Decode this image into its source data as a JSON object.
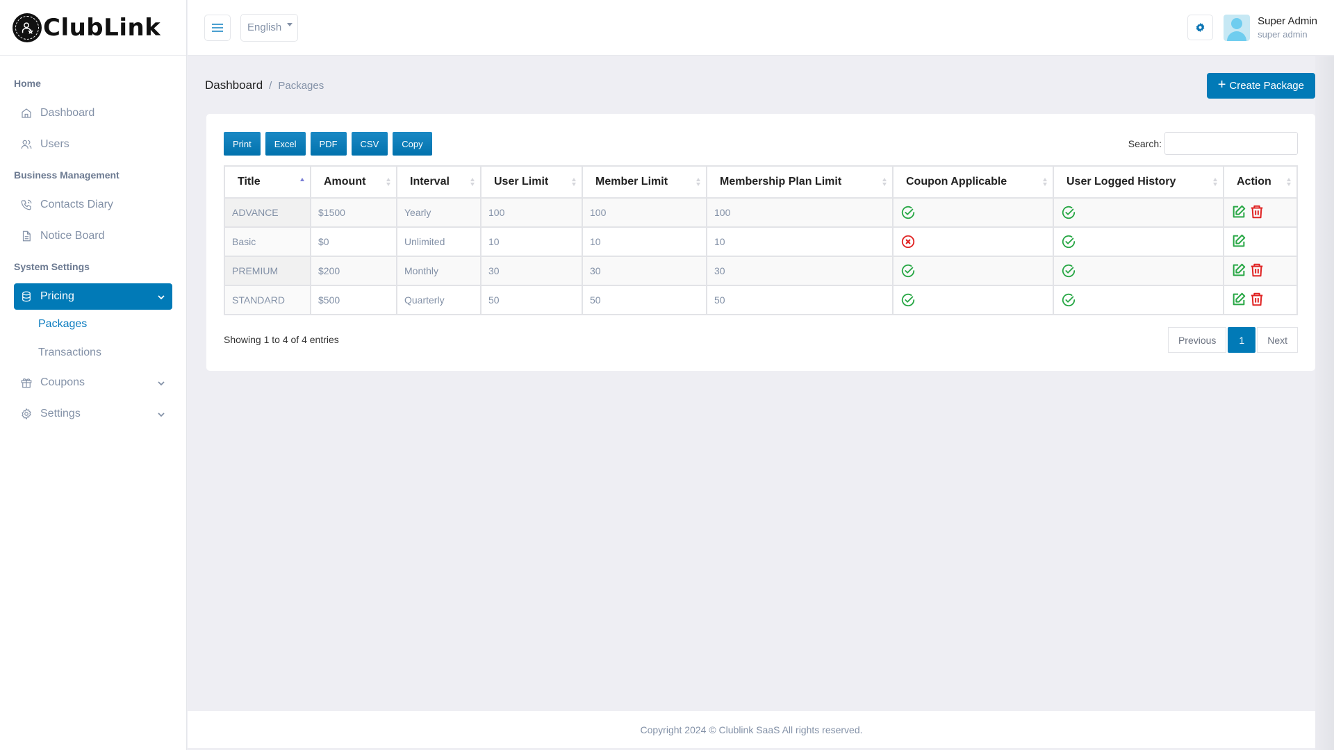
{
  "brand": {
    "name": "ClubLink"
  },
  "header": {
    "language": "English",
    "user_name": "Super Admin",
    "user_role": "super admin"
  },
  "sidebar": {
    "sections": [
      {
        "label": "Home"
      },
      {
        "label": "Business Management"
      },
      {
        "label": "System Settings"
      }
    ],
    "items": {
      "dashboard": "Dashboard",
      "users": "Users",
      "contacts_diary": "Contacts Diary",
      "notice_board": "Notice Board",
      "pricing": "Pricing",
      "packages": "Packages",
      "transactions": "Transactions",
      "coupons": "Coupons",
      "settings": "Settings"
    }
  },
  "breadcrumb": {
    "root": "Dashboard",
    "separator": "/",
    "current": "Packages"
  },
  "actions": {
    "create_label": "Create Package"
  },
  "toolbar": {
    "print": "Print",
    "excel": "Excel",
    "pdf": "PDF",
    "csv": "CSV",
    "copy": "Copy"
  },
  "search": {
    "label": "Search:",
    "value": ""
  },
  "table": {
    "columns": [
      "Title",
      "Amount",
      "Interval",
      "User Limit",
      "Member Limit",
      "Membership Plan Limit",
      "Coupon Applicable",
      "User Logged History",
      "Action"
    ],
    "rows": [
      {
        "title": "ADVANCE",
        "amount": "$1500",
        "interval": "Yearly",
        "user_limit": "100",
        "member_limit": "100",
        "plan_limit": "100",
        "coupon": "yes",
        "logged_history": "yes",
        "deletable": true
      },
      {
        "title": "Basic",
        "amount": "$0",
        "interval": "Unlimited",
        "user_limit": "10",
        "member_limit": "10",
        "plan_limit": "10",
        "coupon": "no",
        "logged_history": "yes",
        "deletable": false
      },
      {
        "title": "PREMIUM",
        "amount": "$200",
        "interval": "Monthly",
        "user_limit": "30",
        "member_limit": "30",
        "plan_limit": "30",
        "coupon": "yes",
        "logged_history": "yes",
        "deletable": true
      },
      {
        "title": "STANDARD",
        "amount": "$500",
        "interval": "Quarterly",
        "user_limit": "50",
        "member_limit": "50",
        "plan_limit": "50",
        "coupon": "yes",
        "logged_history": "yes",
        "deletable": true
      }
    ]
  },
  "pagination": {
    "info": "Showing 1 to 4 of 4 entries",
    "previous": "Previous",
    "current": "1",
    "next": "Next"
  },
  "footer": {
    "text": "Copyright 2024 © Clublink SaaS All rights reserved."
  },
  "colors": {
    "primary": "#017ab7",
    "success": "#28a745",
    "danger": "#e02424",
    "muted_text": "#8391a7"
  }
}
